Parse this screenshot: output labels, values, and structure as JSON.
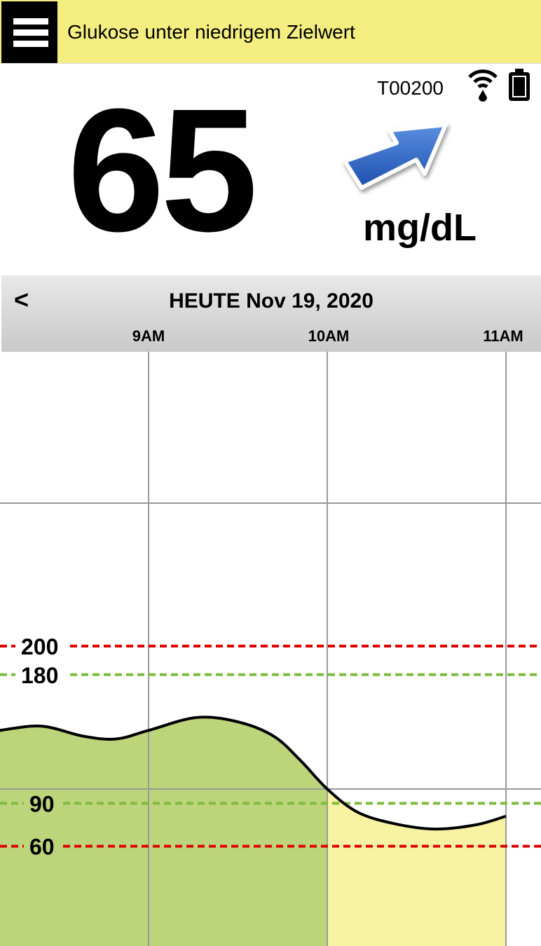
{
  "header": {
    "title": "Glukose unter niedrigem Zielwert",
    "menu_icon": "hamburger-menu-icon"
  },
  "status": {
    "device_id": "T00200",
    "signal_icon": "wifi-drop-icon",
    "battery_icon": "battery-full-icon"
  },
  "reading": {
    "value": "65",
    "unit": "mg/dL",
    "trend_icon": "trend-arrow-up-right-icon"
  },
  "date_bar": {
    "back_label": "<",
    "date": "HEUTE Nov 19, 2020"
  },
  "colors": {
    "banner": "#f3ee7f",
    "in_range_fill": "#bdd57a",
    "low_fill": "#f7f3a3",
    "high_line": "#e00000",
    "target_line": "#7fbb3f"
  },
  "chart_data": {
    "type": "area",
    "x_tick_labels": [
      "9AM",
      "10AM",
      "11AM"
    ],
    "x_ticks": [
      "09:00",
      "10:00",
      "11:00"
    ],
    "xlim": [
      "08:10",
      "11:10"
    ],
    "ylim": [
      0,
      406
    ],
    "grid": {
      "horizontal": [
        100,
        300
      ],
      "vertical": [
        "09:00",
        "10:00",
        "11:00"
      ]
    },
    "reference_lines": [
      {
        "label": "200",
        "value": 200,
        "color": "#e00000",
        "style": "dashed"
      },
      {
        "label": "180",
        "value": 180,
        "color": "#7fbb3f",
        "style": "dashed"
      },
      {
        "label": "90",
        "value": 90,
        "color": "#7fbb3f",
        "style": "dashed"
      },
      {
        "label": "60",
        "value": 60,
        "color": "#e00000",
        "style": "dashed"
      }
    ],
    "series": [
      {
        "x": [
          "08:10",
          "08:24",
          "08:38",
          "08:49",
          "09:00",
          "09:16",
          "09:30",
          "09:42",
          "09:51",
          "10:00",
          "10:10",
          "10:22",
          "10:36",
          "10:50",
          "11:00"
        ],
        "y": [
          141,
          144,
          137,
          135,
          141,
          150,
          147,
          137,
          120,
          100,
          84,
          76,
          72,
          75,
          81
        ]
      }
    ]
  }
}
